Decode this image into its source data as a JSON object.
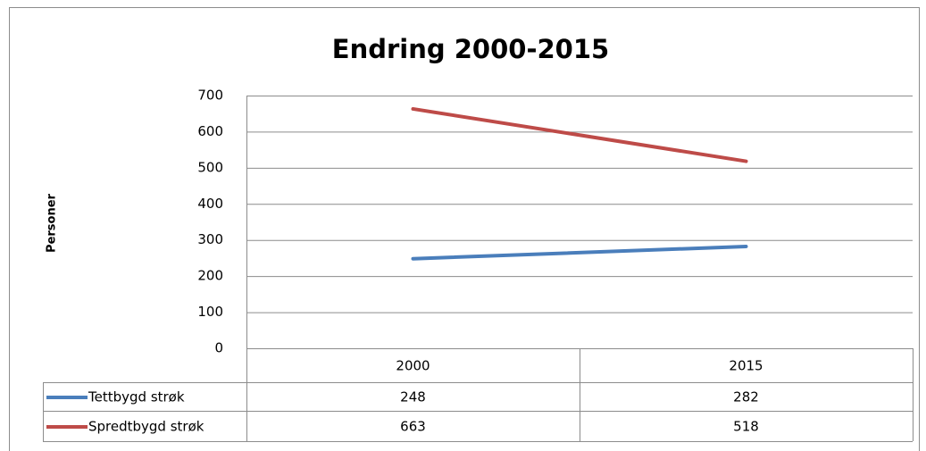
{
  "chart_data": {
    "type": "line",
    "title": "Endring 2000-2015",
    "y_label": "Personer",
    "categories": [
      "2000",
      "2015"
    ],
    "series": [
      {
        "name": "Tettbygd strøk",
        "color": "#4a7ebb",
        "values": [
          248,
          282
        ]
      },
      {
        "name": "Spredtbygd strøk",
        "color": "#be4b48",
        "values": [
          663,
          518
        ]
      }
    ],
    "ylim": [
      0,
      700
    ],
    "yticks": [
      0,
      100,
      200,
      300,
      400,
      500,
      600,
      700
    ],
    "grid": true
  }
}
